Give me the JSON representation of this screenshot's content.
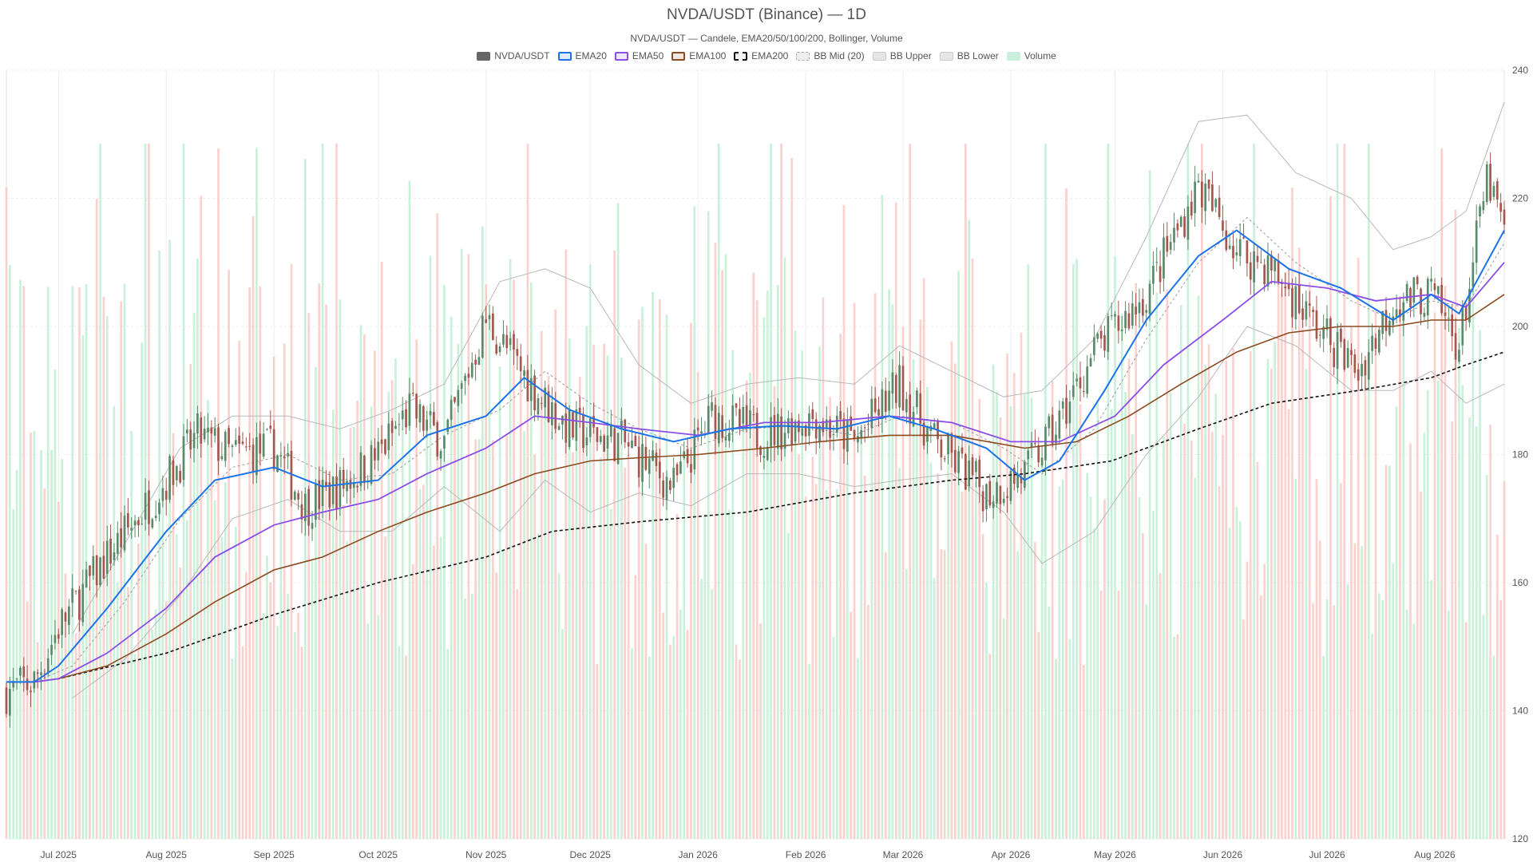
{
  "title": "NVDA/USDT (Binance) — 1D",
  "subtitle": "NVDA/USDT — Candele, EMA20/50/100/200, Bollinger, Volume",
  "legend": [
    {
      "label": "NVDA/USDT",
      "color": "#666666",
      "style": "filled"
    },
    {
      "label": "EMA20",
      "color": "#1a73e8",
      "style": "outline"
    },
    {
      "label": "EMA50",
      "color": "#8a4de8",
      "style": "outline"
    },
    {
      "label": "EMA100",
      "color": "#8b4a20",
      "style": "outline"
    },
    {
      "label": "EMA200",
      "color": "#111111",
      "style": "dashed"
    },
    {
      "label": "BB Mid (20)",
      "color": "#aaaaaa",
      "style": "dotted"
    },
    {
      "label": "BB Upper",
      "color": "#bbbbbb",
      "style": "grey"
    },
    {
      "label": "BB Lower",
      "color": "#bbbbbb",
      "style": "grey"
    },
    {
      "label": "Volume",
      "color": "#a8e6c4",
      "style": "volume"
    }
  ],
  "colors": {
    "up": "#5a8a6a",
    "down": "#a4574d",
    "volume_up": "#bfeed4",
    "volume_down": "#f9c9c4",
    "ema20": "#1a73e8",
    "ema50": "#8a4de8",
    "ema100": "#8b4a20",
    "ema200": "#111111",
    "bb_mid": "#9a9a9a",
    "bb_band": "#b8b8b8",
    "grid": "#eeeeee"
  },
  "chart_data": {
    "type": "candlestick",
    "y_axis": {
      "min": 120,
      "max": 240,
      "ticks": [
        120,
        140,
        160,
        180,
        200,
        220,
        240
      ],
      "position": "right"
    },
    "x_range": [
      "2025-06-16",
      "2026-08-21"
    ],
    "x_ticks": [
      {
        "date": "2025-07-01",
        "label": "Jul 2025"
      },
      {
        "date": "2025-08-01",
        "label": "Aug 2025"
      },
      {
        "date": "2025-09-01",
        "label": "Sep 2025"
      },
      {
        "date": "2025-10-01",
        "label": "Oct 2025"
      },
      {
        "date": "2025-11-01",
        "label": "Nov 2025"
      },
      {
        "date": "2025-12-01",
        "label": "Dec 2025"
      },
      {
        "date": "2026-01-01",
        "label": "Jan 2026"
      },
      {
        "date": "2026-02-01",
        "label": "Feb 2026"
      },
      {
        "date": "2026-03-01",
        "label": "Mar 2026"
      },
      {
        "date": "2026-04-01",
        "label": "Apr 2026"
      },
      {
        "date": "2026-05-01",
        "label": "May 2026"
      },
      {
        "date": "2026-06-01",
        "label": "Jun 2026"
      },
      {
        "date": "2026-07-01",
        "label": "Jul 2026"
      },
      {
        "date": "2026-08-01",
        "label": "Aug 2026"
      }
    ],
    "price_path": [
      [
        "2025-06-16",
        143
      ],
      [
        "2025-06-24",
        144.5
      ],
      [
        "2025-07-01",
        153
      ],
      [
        "2025-07-15",
        164
      ],
      [
        "2025-08-01",
        176
      ],
      [
        "2025-08-10",
        183
      ],
      [
        "2025-08-20",
        180
      ],
      [
        "2025-09-01",
        181
      ],
      [
        "2025-09-10",
        172
      ],
      [
        "2025-09-20",
        175
      ],
      [
        "2025-10-01",
        180
      ],
      [
        "2025-10-10",
        187
      ],
      [
        "2025-10-20",
        182
      ],
      [
        "2025-11-01",
        201
      ],
      [
        "2025-11-15",
        190
      ],
      [
        "2025-11-25",
        184
      ],
      [
        "2025-12-10",
        182
      ],
      [
        "2025-12-25",
        175
      ],
      [
        "2026-01-05",
        186
      ],
      [
        "2026-01-20",
        183
      ],
      [
        "2026-02-03",
        186
      ],
      [
        "2026-02-15",
        182
      ],
      [
        "2026-02-28",
        191
      ],
      [
        "2026-03-10",
        182
      ],
      [
        "2026-03-25",
        174
      ],
      [
        "2026-04-05",
        177
      ],
      [
        "2026-04-15",
        185
      ],
      [
        "2026-04-25",
        196
      ],
      [
        "2026-05-10",
        205
      ],
      [
        "2026-05-25",
        222
      ],
      [
        "2026-06-05",
        212
      ],
      [
        "2026-06-15",
        209
      ],
      [
        "2026-06-28",
        200
      ],
      [
        "2026-07-10",
        193
      ],
      [
        "2026-07-20",
        204
      ],
      [
        "2026-07-31",
        205
      ],
      [
        "2026-08-08",
        197
      ],
      [
        "2026-08-16",
        223
      ],
      [
        "2026-08-21",
        215
      ]
    ],
    "ema_paths": {
      "EMA20": [
        [
          "2025-06-16",
          144.5
        ],
        [
          "2025-06-24",
          144.5
        ],
        [
          "2025-07-01",
          147
        ],
        [
          "2025-07-15",
          156
        ],
        [
          "2025-08-01",
          168
        ],
        [
          "2025-08-15",
          176
        ],
        [
          "2025-09-01",
          178
        ],
        [
          "2025-09-15",
          175
        ],
        [
          "2025-10-01",
          176
        ],
        [
          "2025-10-15",
          183
        ],
        [
          "2025-11-01",
          186
        ],
        [
          "2025-11-12",
          192
        ],
        [
          "2025-11-25",
          187
        ],
        [
          "2025-12-10",
          184
        ],
        [
          "2025-12-25",
          182
        ],
        [
          "2026-01-10",
          184
        ],
        [
          "2026-01-25",
          184.5
        ],
        [
          "2026-02-10",
          184
        ],
        [
          "2026-02-25",
          186
        ],
        [
          "2026-03-10",
          184
        ],
        [
          "2026-03-25",
          181
        ],
        [
          "2026-04-05",
          176
        ],
        [
          "2026-04-15",
          179
        ],
        [
          "2026-04-28",
          190
        ],
        [
          "2026-05-10",
          201
        ],
        [
          "2026-05-25",
          211
        ],
        [
          "2026-06-05",
          215
        ],
        [
          "2026-06-20",
          209
        ],
        [
          "2026-07-05",
          206
        ],
        [
          "2026-07-20",
          201
        ],
        [
          "2026-07-31",
          205
        ],
        [
          "2026-08-08",
          202
        ],
        [
          "2026-08-21",
          215
        ]
      ],
      "EMA50": [
        [
          "2025-06-16",
          144.5
        ],
        [
          "2025-06-24",
          144.5
        ],
        [
          "2025-07-01",
          145
        ],
        [
          "2025-07-15",
          149
        ],
        [
          "2025-08-01",
          156
        ],
        [
          "2025-08-15",
          164
        ],
        [
          "2025-09-01",
          169
        ],
        [
          "2025-09-15",
          171
        ],
        [
          "2025-10-01",
          173
        ],
        [
          "2025-10-15",
          177
        ],
        [
          "2025-11-01",
          181
        ],
        [
          "2025-11-15",
          186
        ],
        [
          "2025-12-01",
          185
        ],
        [
          "2025-12-15",
          184
        ],
        [
          "2026-01-01",
          183
        ],
        [
          "2026-01-20",
          185
        ],
        [
          "2026-02-05",
          185
        ],
        [
          "2026-02-25",
          186
        ],
        [
          "2026-03-15",
          185
        ],
        [
          "2026-04-01",
          182
        ],
        [
          "2026-04-15",
          182
        ],
        [
          "2026-05-01",
          186
        ],
        [
          "2026-05-15",
          194
        ],
        [
          "2026-06-01",
          201
        ],
        [
          "2026-06-15",
          207
        ],
        [
          "2026-07-01",
          206
        ],
        [
          "2026-07-15",
          204
        ],
        [
          "2026-07-31",
          205
        ],
        [
          "2026-08-10",
          203
        ],
        [
          "2026-08-21",
          210
        ]
      ],
      "EMA100": [
        [
          "2025-06-16",
          144.5
        ],
        [
          "2025-06-24",
          144.5
        ],
        [
          "2025-07-01",
          145
        ],
        [
          "2025-07-15",
          147
        ],
        [
          "2025-08-01",
          152
        ],
        [
          "2025-08-15",
          157
        ],
        [
          "2025-09-01",
          162
        ],
        [
          "2025-09-15",
          164
        ],
        [
          "2025-10-01",
          168
        ],
        [
          "2025-10-15",
          171
        ],
        [
          "2025-11-01",
          174
        ],
        [
          "2025-11-15",
          177
        ],
        [
          "2025-12-01",
          179
        ],
        [
          "2025-12-15",
          179.5
        ],
        [
          "2026-01-01",
          180
        ],
        [
          "2026-01-20",
          181
        ],
        [
          "2026-02-05",
          182
        ],
        [
          "2026-02-25",
          183
        ],
        [
          "2026-03-15",
          183
        ],
        [
          "2026-04-05",
          181
        ],
        [
          "2026-04-20",
          182
        ],
        [
          "2026-05-05",
          186
        ],
        [
          "2026-05-20",
          191
        ],
        [
          "2026-06-05",
          196
        ],
        [
          "2026-06-20",
          199
        ],
        [
          "2026-07-05",
          200
        ],
        [
          "2026-07-20",
          200
        ],
        [
          "2026-07-31",
          201
        ],
        [
          "2026-08-10",
          201
        ],
        [
          "2026-08-21",
          205
        ]
      ],
      "EMA200": [
        [
          "2025-06-16",
          144.5
        ],
        [
          "2025-06-24",
          144.5
        ],
        [
          "2025-07-01",
          145
        ],
        [
          "2025-08-01",
          149
        ],
        [
          "2025-09-01",
          155
        ],
        [
          "2025-10-01",
          160
        ],
        [
          "2025-11-01",
          164
        ],
        [
          "2025-11-20",
          168
        ],
        [
          "2025-12-15",
          169.5
        ],
        [
          "2026-01-15",
          171
        ],
        [
          "2026-02-15",
          174
        ],
        [
          "2026-03-15",
          176
        ],
        [
          "2026-04-05",
          177
        ],
        [
          "2026-04-30",
          179
        ],
        [
          "2026-05-25",
          184
        ],
        [
          "2026-06-15",
          188
        ],
        [
          "2026-07-10",
          190
        ],
        [
          "2026-07-31",
          192
        ],
        [
          "2026-08-10",
          194
        ],
        [
          "2026-08-21",
          196
        ]
      ]
    },
    "bollinger": {
      "mid": [
        [
          "2025-06-16",
          144.5
        ],
        [
          "2025-06-24",
          144.5
        ],
        [
          "2025-07-05",
          147
        ],
        [
          "2025-07-20",
          157
        ],
        [
          "2025-08-05",
          170
        ],
        [
          "2025-08-20",
          178
        ],
        [
          "2025-09-05",
          180
        ],
        [
          "2025-09-20",
          176
        ],
        [
          "2025-10-05",
          177
        ],
        [
          "2025-10-20",
          183
        ],
        [
          "2025-11-05",
          187
        ],
        [
          "2025-11-18",
          193
        ],
        [
          "2025-12-01",
          188
        ],
        [
          "2025-12-15",
          184
        ],
        [
          "2025-12-30",
          181
        ],
        [
          "2026-01-15",
          184
        ],
        [
          "2026-01-30",
          184.5
        ],
        [
          "2026-02-15",
          183
        ],
        [
          "2026-02-28",
          186
        ],
        [
          "2026-03-15",
          185
        ],
        [
          "2026-03-30",
          181
        ],
        [
          "2026-04-10",
          177
        ],
        [
          "2026-04-25",
          184
        ],
        [
          "2026-05-10",
          198
        ],
        [
          "2026-05-25",
          210
        ],
        [
          "2026-06-08",
          217
        ],
        [
          "2026-06-22",
          210
        ],
        [
          "2026-07-08",
          204
        ],
        [
          "2026-07-20",
          201
        ],
        [
          "2026-07-31",
          204
        ],
        [
          "2026-08-10",
          203
        ],
        [
          "2026-08-21",
          213
        ]
      ],
      "upper": [
        [
          "2025-07-05",
          152
        ],
        [
          "2025-07-20",
          166
        ],
        [
          "2025-08-05",
          181
        ],
        [
          "2025-08-20",
          186
        ],
        [
          "2025-09-05",
          186
        ],
        [
          "2025-09-20",
          184
        ],
        [
          "2025-10-05",
          187
        ],
        [
          "2025-10-20",
          191
        ],
        [
          "2025-11-05",
          207
        ],
        [
          "2025-11-18",
          209
        ],
        [
          "2025-12-01",
          206
        ],
        [
          "2025-12-15",
          194
        ],
        [
          "2025-12-30",
          188
        ],
        [
          "2026-01-15",
          191
        ],
        [
          "2026-01-30",
          192
        ],
        [
          "2026-02-15",
          191
        ],
        [
          "2026-02-28",
          197
        ],
        [
          "2026-03-15",
          193
        ],
        [
          "2026-03-30",
          189
        ],
        [
          "2026-04-10",
          190
        ],
        [
          "2026-04-25",
          198
        ],
        [
          "2026-05-10",
          214
        ],
        [
          "2026-05-25",
          232
        ],
        [
          "2026-06-08",
          233
        ],
        [
          "2026-06-22",
          224
        ],
        [
          "2026-07-08",
          220
        ],
        [
          "2026-07-20",
          212
        ],
        [
          "2026-07-31",
          214
        ],
        [
          "2026-08-10",
          218
        ],
        [
          "2026-08-21",
          235
        ]
      ],
      "lower": [
        [
          "2025-07-05",
          142
        ],
        [
          "2025-07-20",
          148
        ],
        [
          "2025-08-05",
          158
        ],
        [
          "2025-08-20",
          170
        ],
        [
          "2025-09-05",
          173
        ],
        [
          "2025-09-20",
          168
        ],
        [
          "2025-10-05",
          168
        ],
        [
          "2025-10-20",
          175
        ],
        [
          "2025-11-05",
          168
        ],
        [
          "2025-11-18",
          176
        ],
        [
          "2025-12-01",
          171
        ],
        [
          "2025-12-15",
          174
        ],
        [
          "2025-12-30",
          172
        ],
        [
          "2026-01-15",
          177
        ],
        [
          "2026-01-30",
          177
        ],
        [
          "2026-02-15",
          175
        ],
        [
          "2026-02-28",
          176
        ],
        [
          "2026-03-15",
          177
        ],
        [
          "2026-03-30",
          171
        ],
        [
          "2026-04-10",
          163
        ],
        [
          "2026-04-25",
          168
        ],
        [
          "2026-05-10",
          180
        ],
        [
          "2026-05-25",
          189
        ],
        [
          "2026-06-08",
          200
        ],
        [
          "2026-06-22",
          197
        ],
        [
          "2026-07-08",
          190
        ],
        [
          "2026-07-20",
          190
        ],
        [
          "2026-07-31",
          193
        ],
        [
          "2026-08-10",
          188
        ],
        [
          "2026-08-21",
          191
        ]
      ]
    },
    "volume_scale_max": 1.0
  }
}
